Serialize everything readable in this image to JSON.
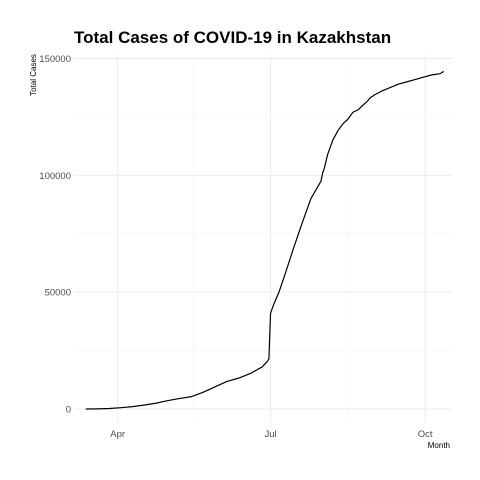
{
  "chart_data": {
    "type": "line",
    "title": "Total Cases of COVID-19 in Kazakhstan",
    "xlabel": "Month",
    "ylabel": "Total Cases",
    "x_tick_labels": [
      {
        "date": "2020-04-01",
        "label": "Apr"
      },
      {
        "date": "2020-07-01",
        "label": "Jul"
      },
      {
        "date": "2020-10-01",
        "label": "Oct"
      }
    ],
    "x_minor_ticks": [
      "2020-05-16",
      "2020-08-16"
    ],
    "y_ticks": [
      0,
      50000,
      100000,
      150000
    ],
    "y_tick_labels": [
      "0",
      "50000",
      "100000",
      "150000"
    ],
    "y_minor_ticks": [
      25000,
      75000,
      125000
    ],
    "xlim": [
      "2020-03-06",
      "2020-10-17"
    ],
    "ylim": [
      -6000,
      151500
    ],
    "grid": true,
    "series": [
      {
        "color": "#000000",
        "x": [
          "2020-03-13",
          "2020-03-20",
          "2020-03-27",
          "2020-04-03",
          "2020-04-10",
          "2020-04-17",
          "2020-04-24",
          "2020-05-01",
          "2020-05-08",
          "2020-05-15",
          "2020-05-22",
          "2020-05-29",
          "2020-06-05",
          "2020-06-12",
          "2020-06-19",
          "2020-06-26",
          "2020-06-29",
          "2020-06-30",
          "2020-07-01",
          "2020-07-03",
          "2020-07-06",
          "2020-07-10",
          "2020-07-15",
          "2020-07-20",
          "2020-07-25",
          "2020-07-31",
          "2020-08-01",
          "2020-08-02",
          "2020-08-04",
          "2020-08-07",
          "2020-08-10",
          "2020-08-13",
          "2020-08-16",
          "2020-08-19",
          "2020-08-22",
          "2020-08-25",
          "2020-08-28",
          "2020-08-29",
          "2020-09-01",
          "2020-09-05",
          "2020-09-10",
          "2020-09-15",
          "2020-09-20",
          "2020-09-25",
          "2020-09-30",
          "2020-10-05",
          "2020-10-10",
          "2020-10-12"
        ],
        "y": [
          0,
          50,
          200,
          550,
          1000,
          1700,
          2500,
          3600,
          4500,
          5300,
          7200,
          9500,
          11800,
          13200,
          15200,
          18000,
          20300,
          21400,
          41000,
          45000,
          50000,
          58500,
          69500,
          80000,
          90000,
          97500,
          101000,
          103000,
          109000,
          115000,
          119000,
          122000,
          124000,
          127000,
          128000,
          130000,
          132000,
          133000,
          134500,
          136000,
          137500,
          139000,
          140000,
          141000,
          142000,
          143000,
          143500,
          144500
        ]
      }
    ]
  }
}
